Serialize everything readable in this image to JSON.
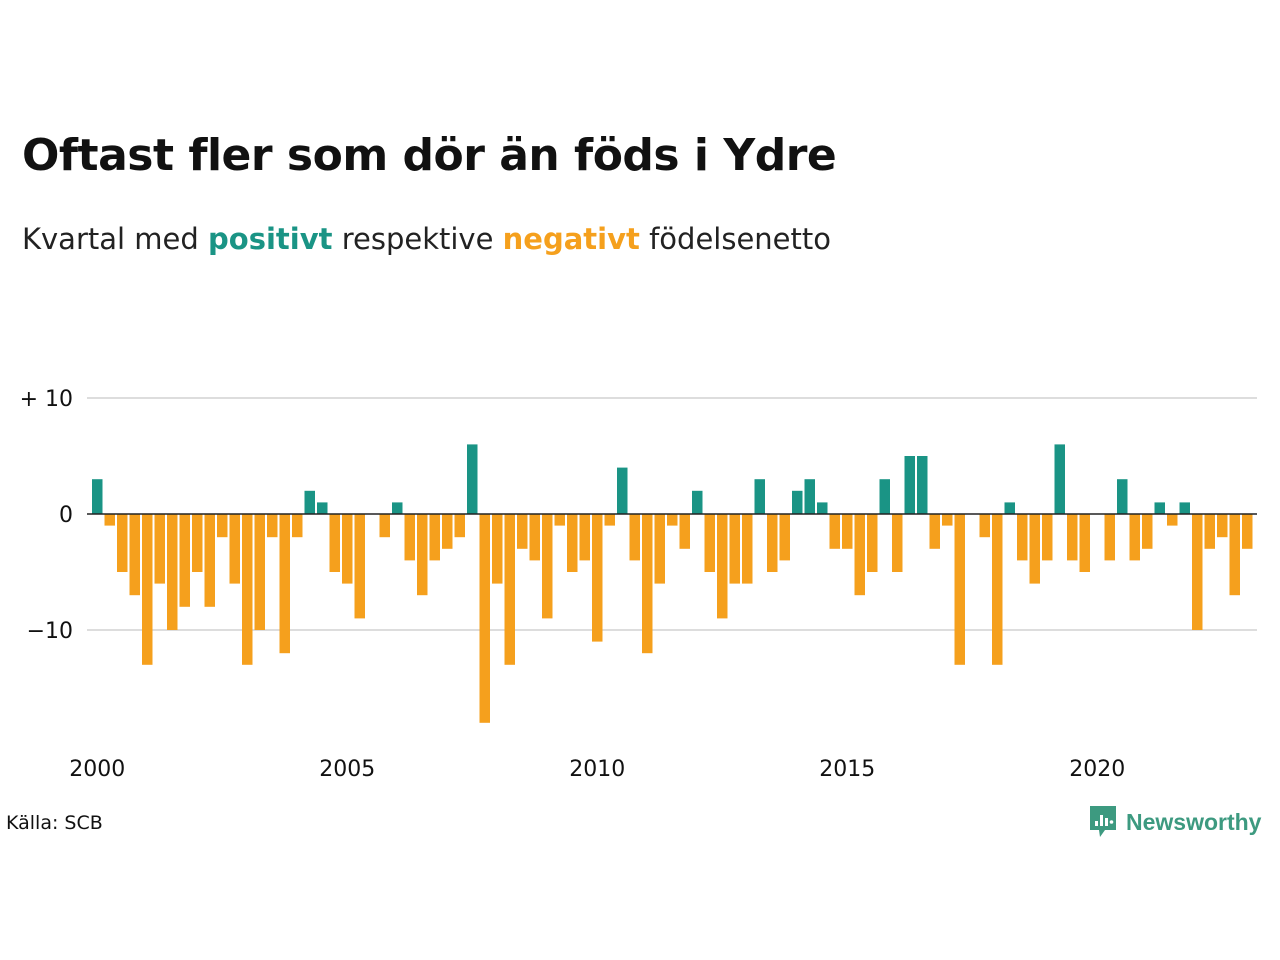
{
  "title": "Oftast fler som dör än föds i Ydre",
  "subtitle": {
    "prefix": "Kvartal med",
    "positive_word": "positivt",
    "middle": "respektive",
    "negative_word": "negativt",
    "suffix": "födelsenetto"
  },
  "source": "Källa: SCB",
  "brand": "Newsworthy",
  "colors": {
    "positive": "#1a9485",
    "negative": "#f5a01d",
    "grid": "#dddddd",
    "baseline": "#222222",
    "brand": "#3d9a80"
  },
  "chart_data": {
    "type": "bar",
    "title": "Oftast fler som dör än föds i Ydre",
    "subtitle": "Kvartal med positivt respektive negativt födelsenetto",
    "x_start": {
      "year": 2000,
      "quarter": 1
    },
    "quarters": [
      {
        "period": "2000 Q1",
        "value": 3
      },
      {
        "period": "2000 Q2",
        "value": -1
      },
      {
        "period": "2000 Q3",
        "value": -5
      },
      {
        "period": "2000 Q4",
        "value": -7
      },
      {
        "period": "2001 Q1",
        "value": -13
      },
      {
        "period": "2001 Q2",
        "value": -6
      },
      {
        "period": "2001 Q3",
        "value": -10
      },
      {
        "period": "2001 Q4",
        "value": -8
      },
      {
        "period": "2002 Q1",
        "value": -5
      },
      {
        "period": "2002 Q2",
        "value": -8
      },
      {
        "period": "2002 Q3",
        "value": -2
      },
      {
        "period": "2002 Q4",
        "value": -6
      },
      {
        "period": "2003 Q1",
        "value": -13
      },
      {
        "period": "2003 Q2",
        "value": -10
      },
      {
        "period": "2003 Q3",
        "value": -2
      },
      {
        "period": "2003 Q4",
        "value": -12
      },
      {
        "period": "2004 Q1",
        "value": -2
      },
      {
        "period": "2004 Q2",
        "value": 2
      },
      {
        "period": "2004 Q3",
        "value": 1
      },
      {
        "period": "2004 Q4",
        "value": -5
      },
      {
        "period": "2005 Q1",
        "value": -6
      },
      {
        "period": "2005 Q2",
        "value": -9
      },
      {
        "period": "2005 Q3",
        "value": 0
      },
      {
        "period": "2005 Q4",
        "value": -2
      },
      {
        "period": "2006 Q1",
        "value": 1
      },
      {
        "period": "2006 Q2",
        "value": -4
      },
      {
        "period": "2006 Q3",
        "value": -7
      },
      {
        "period": "2006 Q4",
        "value": -4
      },
      {
        "period": "2007 Q1",
        "value": -3
      },
      {
        "period": "2007 Q2",
        "value": -2
      },
      {
        "period": "2007 Q3",
        "value": 6
      },
      {
        "period": "2007 Q4",
        "value": -18
      },
      {
        "period": "2008 Q1",
        "value": -6
      },
      {
        "period": "2008 Q2",
        "value": -13
      },
      {
        "period": "2008 Q3",
        "value": -3
      },
      {
        "period": "2008 Q4",
        "value": -4
      },
      {
        "period": "2009 Q1",
        "value": -9
      },
      {
        "period": "2009 Q2",
        "value": -1
      },
      {
        "period": "2009 Q3",
        "value": -5
      },
      {
        "period": "2009 Q4",
        "value": -4
      },
      {
        "period": "2010 Q1",
        "value": -11
      },
      {
        "period": "2010 Q2",
        "value": -1
      },
      {
        "period": "2010 Q3",
        "value": 4
      },
      {
        "period": "2010 Q4",
        "value": -4
      },
      {
        "period": "2011 Q1",
        "value": -12
      },
      {
        "period": "2011 Q2",
        "value": -6
      },
      {
        "period": "2011 Q3",
        "value": -1
      },
      {
        "period": "2011 Q4",
        "value": -3
      },
      {
        "period": "2012 Q1",
        "value": 2
      },
      {
        "period": "2012 Q2",
        "value": -5
      },
      {
        "period": "2012 Q3",
        "value": -9
      },
      {
        "period": "2012 Q4",
        "value": -6
      },
      {
        "period": "2013 Q1",
        "value": -6
      },
      {
        "period": "2013 Q2",
        "value": 3
      },
      {
        "period": "2013 Q3",
        "value": -5
      },
      {
        "period": "2013 Q4",
        "value": -4
      },
      {
        "period": "2014 Q1",
        "value": 2
      },
      {
        "period": "2014 Q2",
        "value": 3
      },
      {
        "period": "2014 Q3",
        "value": 1
      },
      {
        "period": "2014 Q4",
        "value": -3
      },
      {
        "period": "2015 Q1",
        "value": -3
      },
      {
        "period": "2015 Q2",
        "value": -7
      },
      {
        "period": "2015 Q3",
        "value": -5
      },
      {
        "period": "2015 Q4",
        "value": 3
      },
      {
        "period": "2016 Q1",
        "value": -5
      },
      {
        "period": "2016 Q2",
        "value": 5
      },
      {
        "period": "2016 Q3",
        "value": 5
      },
      {
        "period": "2016 Q4",
        "value": -3
      },
      {
        "period": "2017 Q1",
        "value": -1
      },
      {
        "period": "2017 Q2",
        "value": -13
      },
      {
        "period": "2017 Q3",
        "value": 0
      },
      {
        "period": "2017 Q4",
        "value": -2
      },
      {
        "period": "2018 Q1",
        "value": -13
      },
      {
        "period": "2018 Q2",
        "value": 1
      },
      {
        "period": "2018 Q3",
        "value": -4
      },
      {
        "period": "2018 Q4",
        "value": -6
      },
      {
        "period": "2019 Q1",
        "value": -4
      },
      {
        "period": "2019 Q2",
        "value": 6
      },
      {
        "period": "2019 Q3",
        "value": -4
      },
      {
        "period": "2019 Q4",
        "value": -5
      },
      {
        "period": "2020 Q1",
        "value": 0
      },
      {
        "period": "2020 Q2",
        "value": -4
      },
      {
        "period": "2020 Q3",
        "value": 3
      },
      {
        "period": "2020 Q4",
        "value": -4
      },
      {
        "period": "2021 Q1",
        "value": -3
      },
      {
        "period": "2021 Q2",
        "value": 1
      },
      {
        "period": "2021 Q3",
        "value": -1
      },
      {
        "period": "2021 Q4",
        "value": 1
      },
      {
        "period": "2022 Q1",
        "value": -10
      },
      {
        "period": "2022 Q2",
        "value": -3
      },
      {
        "period": "2022 Q3",
        "value": -2
      },
      {
        "period": "2022 Q4",
        "value": -7
      },
      {
        "period": "2023 Q1",
        "value": -3
      }
    ],
    "y_ticks": [
      {
        "value": 10,
        "label": "+ 10"
      },
      {
        "value": 0,
        "label": "0"
      },
      {
        "value": -10,
        "label": "−10"
      }
    ],
    "x_ticks": [
      {
        "year": 2000,
        "label": "2000"
      },
      {
        "year": 2005,
        "label": "2005"
      },
      {
        "year": 2010,
        "label": "2010"
      },
      {
        "year": 2015,
        "label": "2015"
      },
      {
        "year": 2020,
        "label": "2020"
      }
    ],
    "ylim": [
      -18,
      10
    ],
    "grid": true,
    "legend": "none"
  }
}
